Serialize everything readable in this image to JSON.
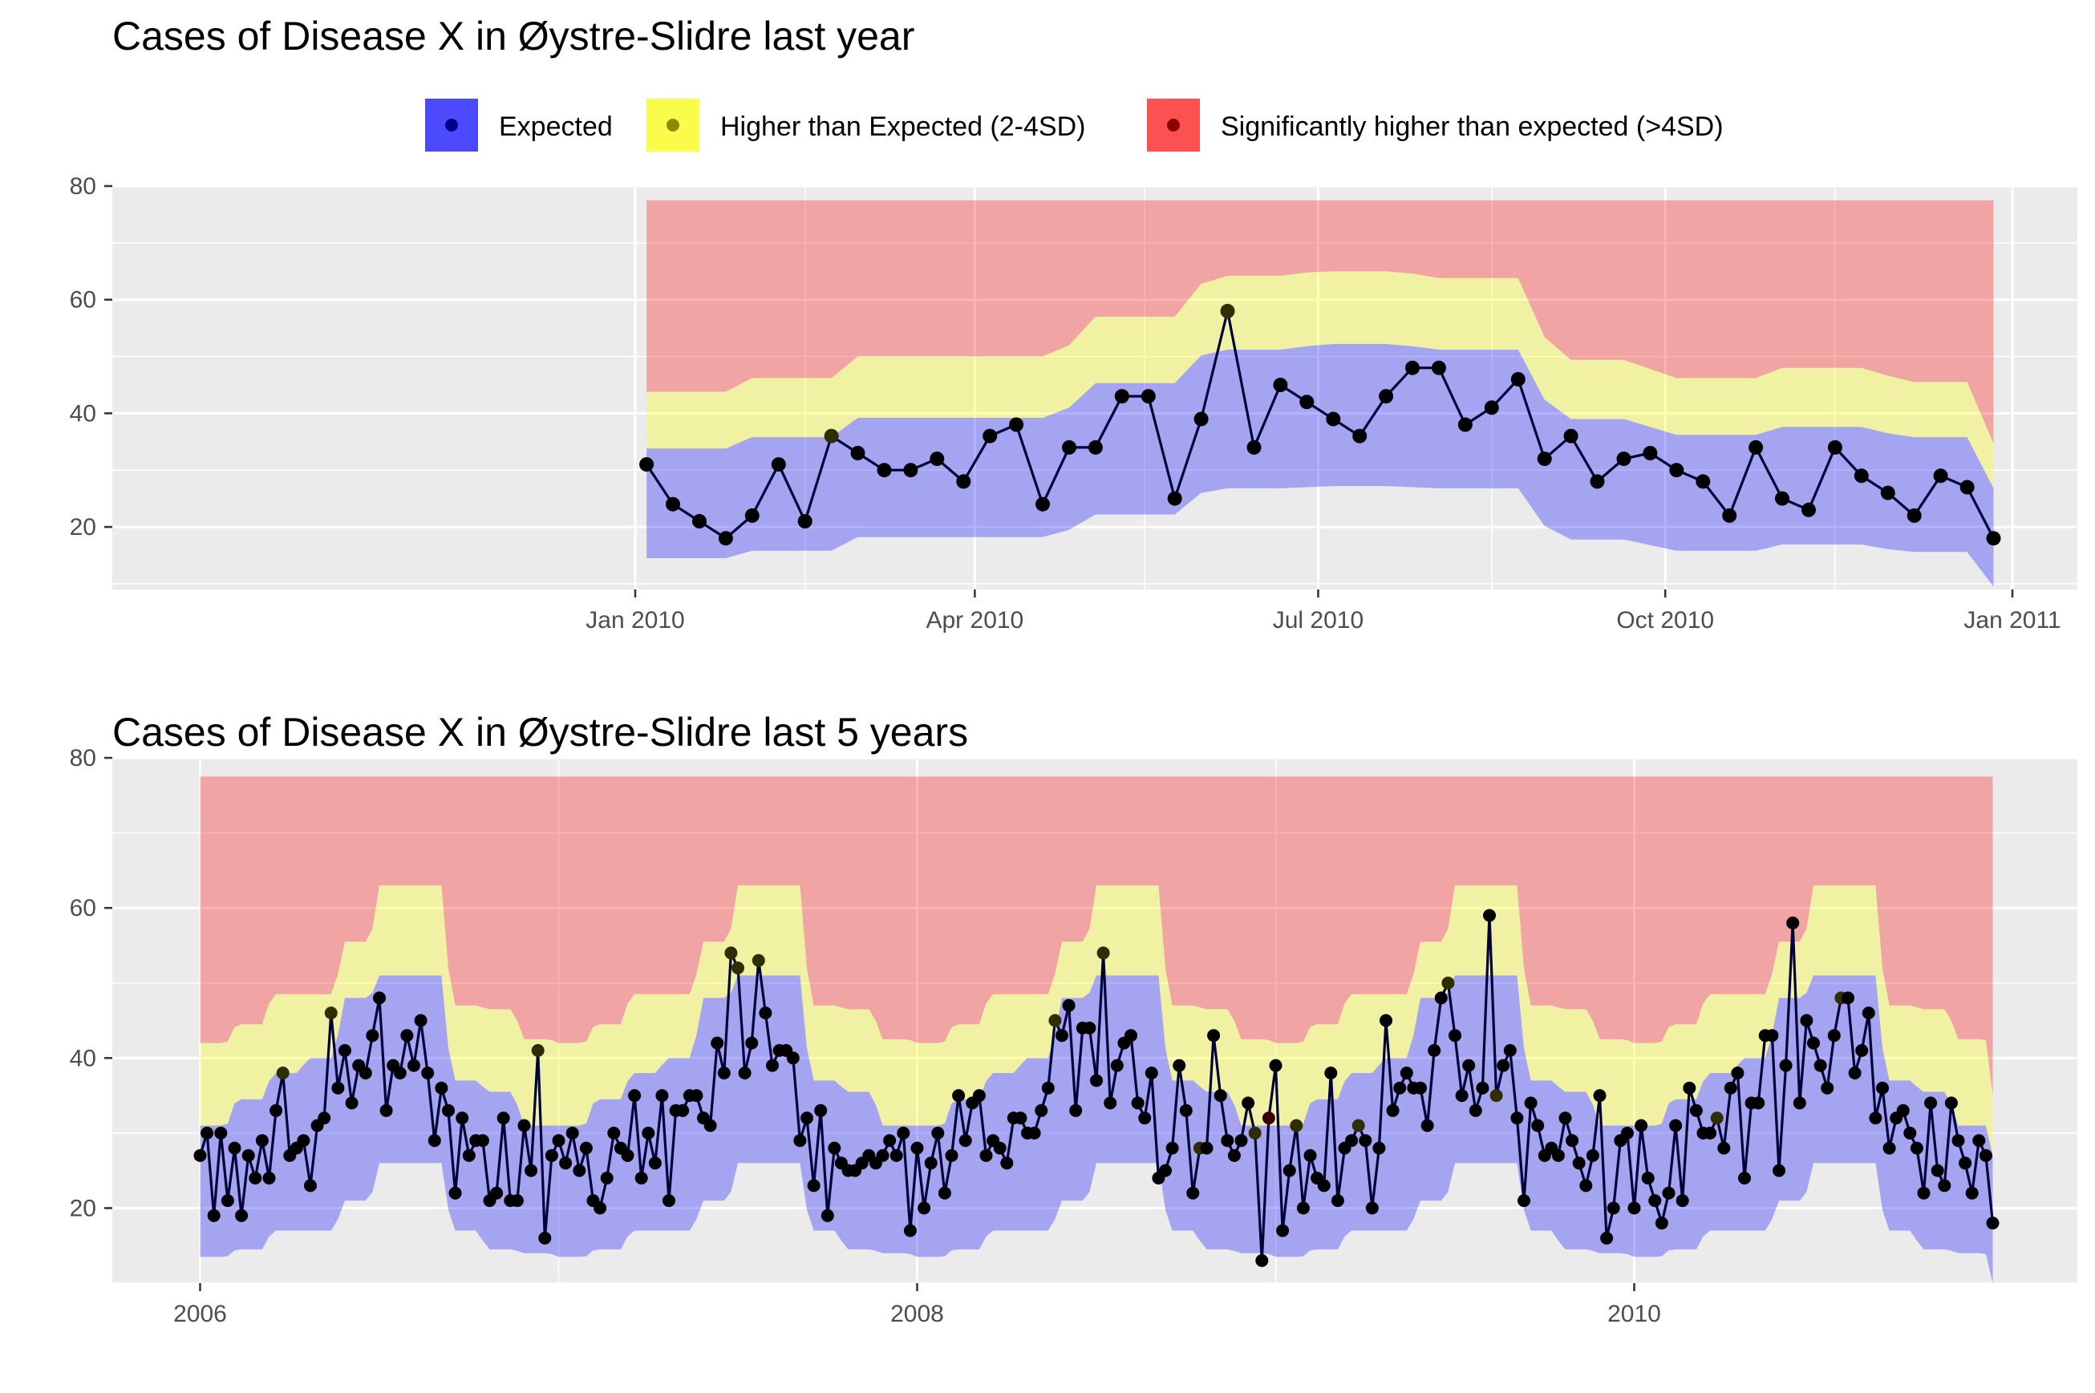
{
  "colors": {
    "expected": "#0000ff",
    "higher": "#ffff00",
    "significant": "#ff0000",
    "panel_bg": "#ebebeb",
    "grid": "#ffffff",
    "line": "#00003a"
  },
  "legend": {
    "placement": "top",
    "items": [
      {
        "key": "expected",
        "label": "Expected"
      },
      {
        "key": "higher",
        "label": "Higher than Expected (2-4SD)"
      },
      {
        "key": "significant",
        "label": "Significantly higher than expected (>4SD)"
      }
    ]
  },
  "chart_data": [
    {
      "type": "area",
      "title": "Cases of Disease X in Øystre-Slidre last year",
      "xlabel": "",
      "ylabel": "",
      "ylim": [
        9,
        80
      ],
      "y_ticks": [
        20,
        40,
        60,
        80
      ],
      "x_ticks": [
        {
          "x": "2010-01-01",
          "label": "Jan 2010"
        },
        {
          "x": "2010-04-01",
          "label": "Apr 2010"
        },
        {
          "x": "2010-07-01",
          "label": "Jul 2010"
        },
        {
          "x": "2010-10-01",
          "label": "Oct 2010"
        },
        {
          "x": "2011-01-01",
          "label": "Jan 2011"
        }
      ],
      "grid": true,
      "x": [
        "2010-01-04",
        "2010-01-11",
        "2010-01-18",
        "2010-01-25",
        "2010-02-01",
        "2010-02-08",
        "2010-02-15",
        "2010-02-22",
        "2010-03-01",
        "2010-03-08",
        "2010-03-15",
        "2010-03-22",
        "2010-03-29",
        "2010-04-05",
        "2010-04-12",
        "2010-04-19",
        "2010-04-26",
        "2010-05-03",
        "2010-05-10",
        "2010-05-17",
        "2010-05-24",
        "2010-05-31",
        "2010-06-07",
        "2010-06-14",
        "2010-06-21",
        "2010-06-28",
        "2010-07-05",
        "2010-07-12",
        "2010-07-19",
        "2010-07-26",
        "2010-08-02",
        "2010-08-09",
        "2010-08-16",
        "2010-08-23",
        "2010-08-30",
        "2010-09-06",
        "2010-09-13",
        "2010-09-20",
        "2010-09-27",
        "2010-10-04",
        "2010-10-11",
        "2010-10-18",
        "2010-10-25",
        "2010-11-01",
        "2010-11-08",
        "2010-11-15",
        "2010-11-22",
        "2010-11-29",
        "2010-12-06",
        "2010-12-13",
        "2010-12-20",
        "2010-12-27"
      ],
      "cases": [
        31,
        24,
        21,
        18,
        22,
        31,
        21,
        36,
        33,
        30,
        30,
        32,
        28,
        36,
        38,
        24,
        34,
        34,
        43,
        43,
        25,
        39,
        58,
        34,
        45,
        42,
        39,
        36,
        43,
        48,
        48,
        38,
        41,
        46,
        32,
        36,
        28,
        32,
        33,
        30,
        28,
        22,
        34,
        25,
        23,
        34,
        29,
        26,
        22,
        29,
        27,
        18
      ],
      "status": [
        "expected",
        "expected",
        "expected",
        "expected",
        "expected",
        "expected",
        "expected",
        "higher",
        "expected",
        "expected",
        "expected",
        "expected",
        "expected",
        "expected",
        "expected",
        "expected",
        "expected",
        "expected",
        "expected",
        "expected",
        "expected",
        "expected",
        "higher",
        "expected",
        "expected",
        "expected",
        "expected",
        "expected",
        "expected",
        "expected",
        "expected",
        "expected",
        "expected",
        "expected",
        "expected",
        "expected",
        "expected",
        "expected",
        "expected",
        "expected",
        "expected",
        "expected",
        "expected",
        "expected",
        "expected",
        "expected",
        "expected",
        "expected",
        "expected",
        "expected",
        "expected",
        "expected"
      ],
      "band_lower": [
        14.5,
        14.5,
        14.5,
        14.5,
        15.8,
        15.8,
        15.8,
        15.8,
        18.2,
        18.2,
        18.2,
        18.2,
        18.2,
        18.2,
        18.2,
        18.2,
        19.5,
        22.2,
        22.2,
        22.2,
        22.2,
        26,
        26.8,
        26.8,
        26.8,
        27,
        27.2,
        27.2,
        27.2,
        27,
        26.8,
        26.8,
        26.8,
        26.8,
        20.2,
        17.8,
        17.8,
        17.8,
        16.8,
        15.8,
        15.8,
        15.8,
        15.8,
        16.9,
        16.9,
        16.9,
        16.9,
        16.1,
        15.6,
        15.6,
        15.6,
        9.5
      ],
      "band_mid": [
        33.8,
        33.8,
        33.8,
        33.8,
        35.8,
        35.8,
        35.8,
        35.8,
        39.2,
        39.2,
        39.2,
        39.2,
        39.2,
        39.2,
        39.2,
        39.2,
        41,
        45.3,
        45.3,
        45.3,
        45.3,
        50.2,
        51.2,
        51.2,
        51.2,
        51.8,
        52.2,
        52.2,
        52.2,
        51.8,
        51.2,
        51.2,
        51.2,
        51.2,
        42.4,
        39,
        39,
        39,
        37.6,
        36.2,
        36.2,
        36.2,
        36.2,
        37.6,
        37.6,
        37.6,
        37.6,
        36.5,
        35.8,
        35.8,
        35.8,
        26.8
      ],
      "band_upper": [
        43.8,
        43.8,
        43.8,
        43.8,
        46.2,
        46.2,
        46.2,
        46.2,
        50,
        50,
        50,
        50,
        50,
        50,
        50,
        50,
        52,
        57,
        57,
        57,
        57,
        62.8,
        64.2,
        64.2,
        64.2,
        64.8,
        65,
        65,
        65,
        64.6,
        63.8,
        63.8,
        63.8,
        63.8,
        53.4,
        49.4,
        49.4,
        49.4,
        47.8,
        46.2,
        46.2,
        46.2,
        46.2,
        48,
        48,
        48,
        48,
        46.6,
        45.5,
        45.5,
        45.5,
        34.7
      ],
      "top": 77.5
    },
    {
      "type": "area",
      "title": "Cases of Disease X in Øystre-Slidre last 5 years",
      "xlabel": "",
      "ylabel": "",
      "ylim": [
        10,
        80
      ],
      "y_ticks": [
        20,
        40,
        60,
        80
      ],
      "x_ticks": [
        {
          "x": 2006,
          "label": "2006"
        },
        {
          "x": 2008,
          "label": "2008"
        },
        {
          "x": 2010,
          "label": "2010"
        }
      ],
      "x_minor": [
        2007,
        2009
      ],
      "xlim": [
        2005.75,
        2011.25
      ],
      "grid": true,
      "season_band": {
        "lower": [
          13.5,
          14.5,
          17,
          17,
          21,
          26,
          26,
          17,
          14.5,
          14
        ],
        "mid": [
          31,
          34.5,
          38,
          40,
          48,
          51,
          51,
          37,
          35.5,
          31
        ],
        "upper": [
          42,
          44.5,
          48.5,
          48.5,
          55.5,
          63,
          63,
          47,
          46.5,
          42.5
        ]
      },
      "top": 77.5,
      "cases": [
        27,
        30,
        19,
        30,
        21,
        28,
        19,
        27,
        24,
        29,
        24,
        33,
        38,
        27,
        28,
        29,
        23,
        31,
        32,
        46,
        36,
        41,
        34,
        39,
        38,
        43,
        48,
        33,
        39,
        38,
        43,
        39,
        45,
        38,
        29,
        36,
        33,
        22,
        32,
        27,
        29,
        29,
        21,
        22,
        32,
        21,
        21,
        31,
        25,
        41,
        16,
        27,
        29,
        26,
        30,
        25,
        28,
        21,
        20,
        24,
        30,
        28,
        27,
        35,
        24,
        30,
        26,
        35,
        21,
        33,
        33,
        35,
        35,
        32,
        31,
        42,
        38,
        54,
        52,
        38,
        42,
        53,
        46,
        39,
        41,
        41,
        40,
        29,
        32,
        23,
        33,
        19,
        28,
        26,
        25,
        25,
        26,
        27,
        26,
        27,
        29,
        27,
        30,
        17,
        28,
        20,
        26,
        30,
        22,
        27,
        35,
        29,
        34,
        35,
        27,
        29,
        28,
        26,
        32,
        32,
        30,
        30,
        33,
        36,
        45,
        43,
        47,
        33,
        44,
        44,
        37,
        54,
        34,
        39,
        42,
        43,
        34,
        32,
        38,
        24,
        25,
        28,
        39,
        33,
        22,
        28,
        28,
        43,
        35,
        29,
        27,
        29,
        34,
        30,
        13,
        32,
        39,
        17,
        25,
        31,
        20,
        27,
        24,
        23,
        38,
        21,
        28,
        29,
        31,
        29,
        20,
        28,
        45,
        33,
        36,
        38,
        36,
        36,
        31,
        41,
        48,
        50,
        43,
        35,
        39,
        33,
        36,
        59,
        35,
        39,
        41,
        32,
        21,
        34,
        31,
        27,
        28,
        27,
        32,
        29,
        26,
        23,
        27,
        35,
        16,
        20,
        29,
        30,
        20,
        31,
        24,
        21,
        18,
        22,
        31,
        21,
        36,
        33,
        30,
        30,
        32,
        28,
        36,
        38,
        24,
        34,
        34,
        43,
        43,
        25,
        39,
        58,
        34,
        45,
        42,
        39,
        36,
        43,
        48,
        48,
        38,
        41,
        46,
        32,
        36,
        28,
        32,
        33,
        30,
        28,
        22,
        34,
        25,
        23,
        34,
        29,
        26,
        22,
        29,
        27,
        18
      ],
      "status_higher_idx": [
        12,
        19,
        49,
        77,
        78,
        81,
        124,
        131,
        145,
        153,
        159,
        168,
        181,
        188,
        220,
        238
      ],
      "status_significant_idx": [
        155
      ]
    }
  ]
}
